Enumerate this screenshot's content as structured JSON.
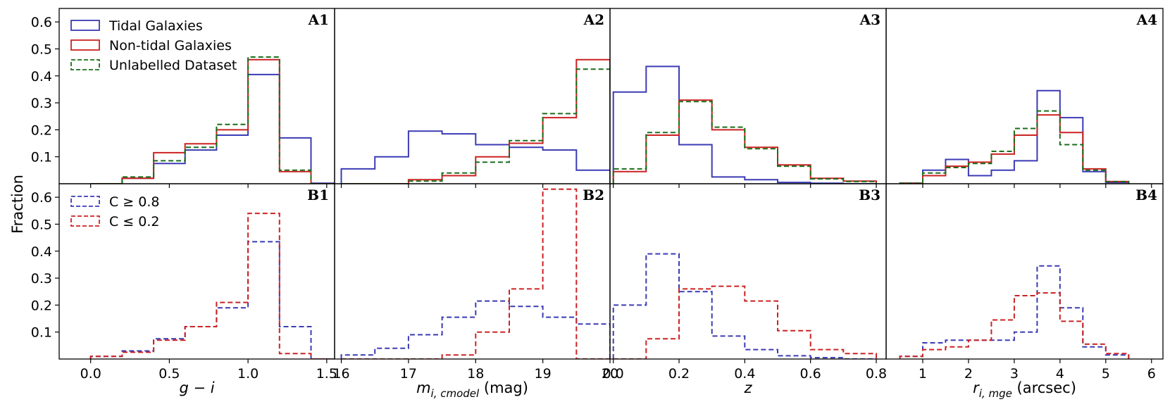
{
  "colors": {
    "tidal": "#3b3bb5",
    "nontidal": "#cc2222",
    "unlabelled": "#1a6e1a",
    "c_high": "#3b3bb5",
    "c_low": "#cc2222"
  },
  "ylabel": "Fraction",
  "legend_top": [
    {
      "label": "Tidal Galaxies",
      "color": "#3b3bb5",
      "dashed": false
    },
    {
      "label": "Non-tidal Galaxies",
      "color": "#cc2222",
      "dashed": false
    },
    {
      "label": "Unlabelled Dataset",
      "color": "#1a6e1a",
      "dashed": true
    }
  ],
  "legend_bottom": [
    {
      "label": "C ≥ 0.8",
      "color": "#3b3bb5",
      "dashed": true
    },
    {
      "label": "C ≤ 0.2",
      "color": "#cc2222",
      "dashed": true
    }
  ],
  "chart_data": [
    {
      "type": "histogram",
      "column": 0,
      "xlabel_main": "g − i",
      "xlabel_unit": "",
      "xlim": [
        -0.2,
        1.55
      ],
      "xticks": [
        0.0,
        0.5,
        1.0,
        1.5
      ],
      "xtick_labels": [
        "0.0",
        "0.5",
        "1.0",
        "1.5"
      ],
      "ylim": [
        0.0,
        0.65
      ],
      "ylim_bottom": [
        0.0,
        0.65
      ],
      "yticks": [
        0.1,
        0.2,
        0.3,
        0.4,
        0.5,
        0.6
      ],
      "ytick_labels": [
        "0.1",
        "0.2",
        "0.3",
        "0.4",
        "0.5",
        "0.6"
      ],
      "bins": [
        0.0,
        0.2,
        0.4,
        0.6,
        0.8,
        1.0,
        1.2,
        1.4,
        1.6
      ],
      "top": {
        "label": "A1",
        "series": [
          {
            "name": "Tidal Galaxies",
            "key": "tidal",
            "values": [
              0,
              0.02,
              0.075,
              0.125,
              0.18,
              0.405,
              0.17,
              0.002
            ]
          },
          {
            "name": "Non-tidal Galaxies",
            "key": "nontidal",
            "values": [
              0,
              0.02,
              0.115,
              0.148,
              0.2,
              0.46,
              0.045,
              0
            ]
          },
          {
            "name": "Unlabelled Dataset",
            "key": "unlabelled",
            "values": [
              0,
              0.025,
              0.085,
              0.135,
              0.22,
              0.47,
              0.05,
              0
            ]
          }
        ]
      },
      "bottom": {
        "label": "B1",
        "series": [
          {
            "name": "C ≥ 0.8",
            "key": "c_high",
            "values": [
              0.01,
              0.03,
              0.075,
              0.12,
              0.19,
              0.435,
              0.12,
              0
            ]
          },
          {
            "name": "C ≤ 0.2",
            "key": "c_low",
            "values": [
              0.01,
              0.025,
              0.07,
              0.12,
              0.21,
              0.54,
              0.02,
              0
            ]
          }
        ]
      }
    },
    {
      "type": "histogram",
      "column": 1,
      "xlabel_main": "m",
      "xlabel_sub": "i, cmodel",
      "xlabel_unit": " (mag)",
      "xlim": [
        15.9,
        20.0
      ],
      "xticks": [
        16,
        17,
        18,
        19,
        20
      ],
      "xtick_labels": [
        "16",
        "17",
        "18",
        "19",
        "20"
      ],
      "ylim": [
        0.0,
        0.65
      ],
      "ylim_bottom": [
        0.0,
        0.65
      ],
      "yticks": [
        0.1,
        0.2,
        0.3,
        0.4,
        0.5,
        0.6
      ],
      "ytick_labels": [
        "0.1",
        "0.2",
        "0.3",
        "0.4",
        "0.5",
        "0.6"
      ],
      "bins": [
        16.0,
        16.5,
        17.0,
        17.5,
        18.0,
        18.5,
        19.0,
        19.5,
        20.0
      ],
      "top": {
        "label": "A2",
        "series": [
          {
            "name": "Tidal Galaxies",
            "key": "tidal",
            "values": [
              0.055,
              0.1,
              0.195,
              0.185,
              0.145,
              0.135,
              0.125,
              0.05
            ]
          },
          {
            "name": "Non-tidal Galaxies",
            "key": "nontidal",
            "values": [
              0,
              0,
              0.015,
              0.03,
              0.1,
              0.15,
              0.245,
              0.46
            ]
          },
          {
            "name": "Unlabelled Dataset",
            "key": "unlabelled",
            "values": [
              0,
              0,
              0.01,
              0.04,
              0.08,
              0.16,
              0.26,
              0.425
            ]
          }
        ]
      },
      "bottom": {
        "label": "B2",
        "series": [
          {
            "name": "C ≥ 0.8",
            "key": "c_high",
            "values": [
              0.015,
              0.04,
              0.09,
              0.155,
              0.215,
              0.195,
              0.155,
              0.13
            ]
          },
          {
            "name": "C ≤ 0.2",
            "key": "c_low",
            "values": [
              0,
              0,
              0,
              0.015,
              0.1,
              0.26,
              0.63,
              0
            ]
          }
        ]
      }
    },
    {
      "type": "histogram",
      "column": 2,
      "xlabel_main": "z",
      "xlabel_unit": "",
      "xlim": [
        -0.01,
        0.83
      ],
      "xticks": [
        0.0,
        0.2,
        0.4,
        0.6,
        0.8
      ],
      "xtick_labels": [
        "0.0",
        "0.2",
        "0.4",
        "0.6",
        "0.8"
      ],
      "ylim": [
        0.0,
        0.65
      ],
      "ylim_bottom": [
        0.0,
        0.65
      ],
      "yticks": [
        0.1,
        0.2,
        0.3,
        0.4,
        0.5,
        0.6
      ],
      "ytick_labels": [
        "0.1",
        "0.2",
        "0.3",
        "0.4",
        "0.5",
        "0.6"
      ],
      "bins": [
        0.0,
        0.1,
        0.2,
        0.3,
        0.4,
        0.5,
        0.6,
        0.7,
        0.8
      ],
      "top": {
        "label": "A3",
        "series": [
          {
            "name": "Tidal Galaxies",
            "key": "tidal",
            "values": [
              0.34,
              0.435,
              0.145,
              0.025,
              0.015,
              0.005,
              0.002,
              0
            ]
          },
          {
            "name": "Non-tidal Galaxies",
            "key": "nontidal",
            "values": [
              0.045,
              0.18,
              0.31,
              0.2,
              0.135,
              0.07,
              0.02,
              0.01
            ]
          },
          {
            "name": "Unlabelled Dataset",
            "key": "unlabelled",
            "values": [
              0.055,
              0.19,
              0.305,
              0.21,
              0.13,
              0.065,
              0.018,
              0.008
            ]
          }
        ]
      },
      "bottom": {
        "label": "B3",
        "series": [
          {
            "name": "C ≥ 0.8",
            "key": "c_high",
            "values": [
              0.2,
              0.39,
              0.25,
              0.085,
              0.035,
              0.012,
              0.005,
              0
            ]
          },
          {
            "name": "C ≤ 0.2",
            "key": "c_low",
            "values": [
              0,
              0.075,
              0.26,
              0.27,
              0.215,
              0.105,
              0.035,
              0.02
            ]
          }
        ]
      }
    },
    {
      "type": "histogram",
      "column": 3,
      "xlabel_main": "r",
      "xlabel_sub": "i, mge",
      "xlabel_unit": " (arcsec)",
      "xlim": [
        0.2,
        6.25
      ],
      "xticks": [
        1,
        2,
        3,
        4,
        5,
        6
      ],
      "xtick_labels": [
        "1",
        "2",
        "3",
        "4",
        "5",
        "6"
      ],
      "ylim": [
        0.0,
        0.65
      ],
      "ylim_bottom": [
        0.0,
        0.65
      ],
      "yticks": [
        0.1,
        0.2,
        0.3,
        0.4,
        0.5,
        0.6
      ],
      "ytick_labels": [
        "0.1",
        "0.2",
        "0.3",
        "0.4",
        "0.5",
        "0.6"
      ],
      "bins": [
        0.5,
        1.0,
        1.5,
        2.0,
        2.5,
        3.0,
        3.5,
        4.0,
        4.5,
        5.0,
        5.5
      ],
      "top": {
        "label": "A4",
        "series": [
          {
            "name": "Tidal Galaxies",
            "key": "tidal",
            "values": [
              0.002,
              0.05,
              0.09,
              0.03,
              0.05,
              0.085,
              0.345,
              0.245,
              0.045,
              0.005
            ]
          },
          {
            "name": "Non-tidal Galaxies",
            "key": "nontidal",
            "values": [
              0.002,
              0.03,
              0.065,
              0.08,
              0.11,
              0.18,
              0.255,
              0.19,
              0.055,
              0.008
            ]
          },
          {
            "name": "Unlabelled Dataset",
            "key": "unlabelled",
            "values": [
              0.002,
              0.04,
              0.06,
              0.075,
              0.12,
              0.205,
              0.27,
              0.145,
              0.05,
              0.008
            ]
          }
        ]
      },
      "bottom": {
        "label": "B4",
        "series": [
          {
            "name": "C ≥ 0.8",
            "key": "c_high",
            "values": [
              0.01,
              0.06,
              0.07,
              0.07,
              0.07,
              0.1,
              0.345,
              0.19,
              0.045,
              0.015
            ]
          },
          {
            "name": "C ≤ 0.2",
            "key": "c_low",
            "values": [
              0.01,
              0.035,
              0.045,
              0.07,
              0.145,
              0.235,
              0.245,
              0.14,
              0.055,
              0.02
            ]
          }
        ]
      }
    }
  ]
}
